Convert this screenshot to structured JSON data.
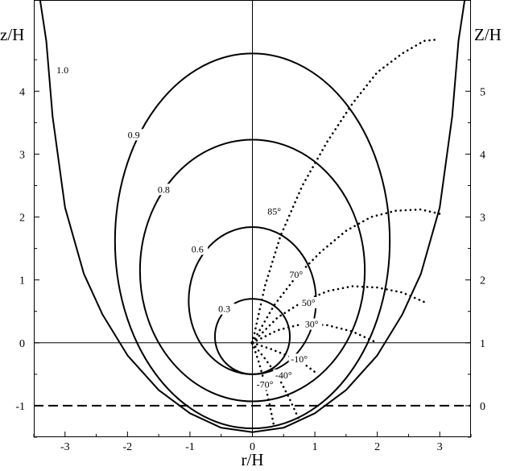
{
  "chart_data": {
    "type": "line",
    "xlabel": "r/H",
    "ylabel": "z/H",
    "ylabel_right": "Z/H",
    "xlim": [
      -3.5,
      3.5
    ],
    "ylim": [
      -1.5,
      5.45
    ],
    "ylim_right_offset": 1,
    "grid": false,
    "x_ticks": [
      -3,
      -2,
      -1,
      0,
      1,
      2,
      3
    ],
    "x_tick_labels": [
      "-3",
      "-2",
      "-1",
      "0",
      "1",
      "2",
      "3"
    ],
    "y_ticks_left": [
      -1,
      0,
      1,
      2,
      3,
      4
    ],
    "y_tick_labels_left": [
      "-1",
      "0",
      "1",
      "2",
      "3",
      "4"
    ],
    "y_ticks_right": [
      0,
      1,
      2,
      3,
      4,
      5
    ],
    "y_tick_labels_right": [
      "0",
      "1",
      "2",
      "3",
      "4",
      "5"
    ],
    "reference_lines": [
      {
        "orientation": "horizontal",
        "y": 0,
        "style": "solid"
      },
      {
        "orientation": "vertical",
        "x": 0,
        "style": "solid"
      },
      {
        "orientation": "horizontal",
        "y": -1,
        "style": "dashed"
      }
    ],
    "series": [
      {
        "label": "0.3",
        "style": "solid",
        "shape": "ellipse",
        "center": [
          0,
          0.1
        ],
        "radii": [
          0.6,
          0.6
        ],
        "label_at": [
          -0.45,
          0.5
        ]
      },
      {
        "label": "0.6",
        "style": "solid",
        "shape": "ellipse",
        "center": [
          0,
          0.67
        ],
        "radii": [
          1.02,
          1.17
        ],
        "label_at": [
          -0.88,
          1.45
        ]
      },
      {
        "label": "0.8",
        "style": "solid",
        "shape": "ellipse",
        "center": [
          0,
          1.15
        ],
        "radii": [
          1.8,
          2.08
        ],
        "label_at": [
          -1.42,
          2.4
        ]
      },
      {
        "label": "0.9",
        "style": "solid",
        "shape": "ellipse",
        "center": [
          0,
          1.62
        ],
        "radii": [
          2.2,
          2.98
        ],
        "label_at": [
          -1.9,
          3.27
        ]
      },
      {
        "label": "1.0",
        "style": "solid",
        "shape": "u-curve",
        "x": [
          -3.4,
          -3.3,
          -3.2,
          -3.0,
          -2.7,
          -2.4,
          -2.0,
          -1.5,
          -1.0,
          -0.5,
          0.0,
          0.5,
          1.0,
          1.5,
          2.0,
          2.4,
          2.7,
          3.0,
          3.2,
          3.3,
          3.4
        ],
        "y": [
          5.45,
          4.8,
          3.6,
          2.15,
          1.1,
          0.45,
          -0.2,
          -0.75,
          -1.12,
          -1.35,
          -1.42,
          -1.35,
          -1.12,
          -0.75,
          -0.2,
          0.45,
          1.1,
          2.15,
          3.6,
          4.8,
          5.45
        ],
        "label_at": [
          -3.04,
          4.3
        ]
      }
    ],
    "rays": [
      {
        "label": "85°",
        "style": "dotted",
        "label_at": [
          0.35,
          2.05
        ],
        "x": [
          0,
          0.2,
          0.45,
          0.8,
          1.2,
          1.6,
          2.0,
          2.4,
          2.75,
          2.95
        ],
        "y": [
          0,
          0.9,
          1.7,
          2.5,
          3.2,
          3.8,
          4.3,
          4.6,
          4.8,
          4.82
        ]
      },
      {
        "label": "70°",
        "style": "dotted",
        "label_at": [
          0.7,
          1.05
        ],
        "x": [
          0,
          0.35,
          0.7,
          1.1,
          1.5,
          1.9,
          2.3,
          2.7,
          3.0
        ],
        "y": [
          0,
          0.6,
          1.05,
          1.45,
          1.78,
          2.0,
          2.1,
          2.12,
          2.05
        ]
      },
      {
        "label": "50°",
        "style": "dotted",
        "label_at": [
          0.9,
          0.6
        ],
        "x": [
          0,
          0.4,
          0.8,
          1.2,
          1.6,
          2.0,
          2.4,
          2.75
        ],
        "y": [
          0,
          0.4,
          0.65,
          0.82,
          0.9,
          0.88,
          0.8,
          0.65
        ]
      },
      {
        "label": "30°",
        "style": "dotted",
        "label_at": [
          0.95,
          0.26
        ],
        "x": [
          0,
          0.4,
          0.8,
          1.2,
          1.6,
          2.0
        ],
        "y": [
          0,
          0.2,
          0.3,
          0.28,
          0.18,
          0.0
        ]
      },
      {
        "label": "-10°",
        "style": "dotted",
        "label_at": [
          0.75,
          -0.3
        ],
        "x": [
          0,
          0.3,
          0.6,
          0.85,
          1.05
        ],
        "y": [
          0,
          -0.1,
          -0.22,
          -0.35,
          -0.5
        ]
      },
      {
        "label": "-40°",
        "style": "dotted",
        "label_at": [
          0.5,
          -0.55
        ],
        "x": [
          0,
          0.2,
          0.42,
          0.6,
          0.76
        ],
        "y": [
          0,
          -0.25,
          -0.55,
          -0.9,
          -1.25
        ]
      },
      {
        "label": "-70°",
        "style": "dotted",
        "label_at": [
          0.2,
          -0.7
        ],
        "x": [
          0,
          0.1,
          0.2,
          0.28,
          0.35
        ],
        "y": [
          0,
          -0.3,
          -0.65,
          -1.0,
          -1.35
        ]
      }
    ]
  }
}
